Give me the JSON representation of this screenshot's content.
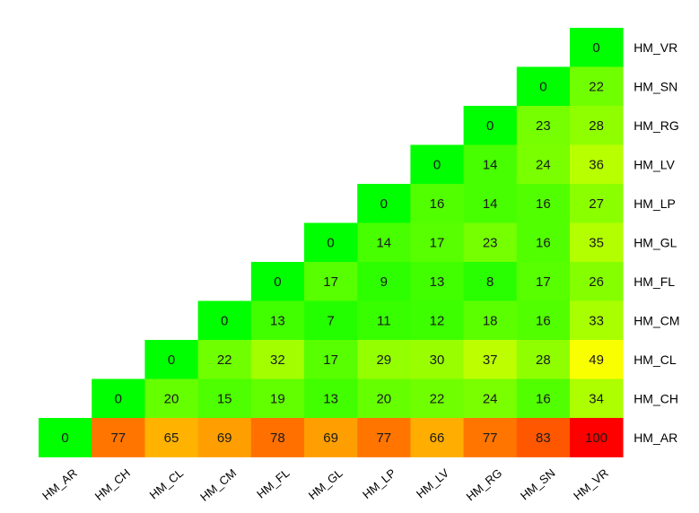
{
  "chart_data": {
    "type": "heatmap",
    "title": "",
    "columns": [
      "HM_AR",
      "HM_CH",
      "HM_CL",
      "HM_CM",
      "HM_FL",
      "HM_GL",
      "HM_LP",
      "HM_LV",
      "HM_RG",
      "HM_SN",
      "HM_VR"
    ],
    "rows": [
      "HM_VR",
      "HM_SN",
      "HM_RG",
      "HM_LV",
      "HM_LP",
      "HM_GL",
      "HM_FL",
      "HM_CM",
      "HM_CL",
      "HM_CH",
      "HM_AR"
    ],
    "values": [
      [
        null,
        null,
        null,
        null,
        null,
        null,
        null,
        null,
        null,
        null,
        0
      ],
      [
        null,
        null,
        null,
        null,
        null,
        null,
        null,
        null,
        null,
        0,
        22
      ],
      [
        null,
        null,
        null,
        null,
        null,
        null,
        null,
        null,
        0,
        23,
        28
      ],
      [
        null,
        null,
        null,
        null,
        null,
        null,
        null,
        0,
        14,
        24,
        36
      ],
      [
        null,
        null,
        null,
        null,
        null,
        null,
        0,
        16,
        14,
        16,
        27
      ],
      [
        null,
        null,
        null,
        null,
        null,
        0,
        14,
        17,
        23,
        16,
        35
      ],
      [
        null,
        null,
        null,
        null,
        0,
        17,
        9,
        13,
        8,
        17,
        26
      ],
      [
        null,
        null,
        null,
        0,
        13,
        7,
        11,
        12,
        18,
        16,
        33
      ],
      [
        null,
        null,
        0,
        22,
        32,
        17,
        29,
        30,
        37,
        28,
        49
      ],
      [
        null,
        0,
        20,
        15,
        19,
        13,
        20,
        22,
        24,
        16,
        34
      ],
      [
        0,
        77,
        65,
        69,
        78,
        69,
        77,
        66,
        77,
        83,
        100
      ]
    ],
    "color_scale": {
      "min": 0,
      "max": 100,
      "low": "#00ff00",
      "mid": "#ffff00",
      "high": "#ff0000"
    },
    "legend": "none"
  }
}
